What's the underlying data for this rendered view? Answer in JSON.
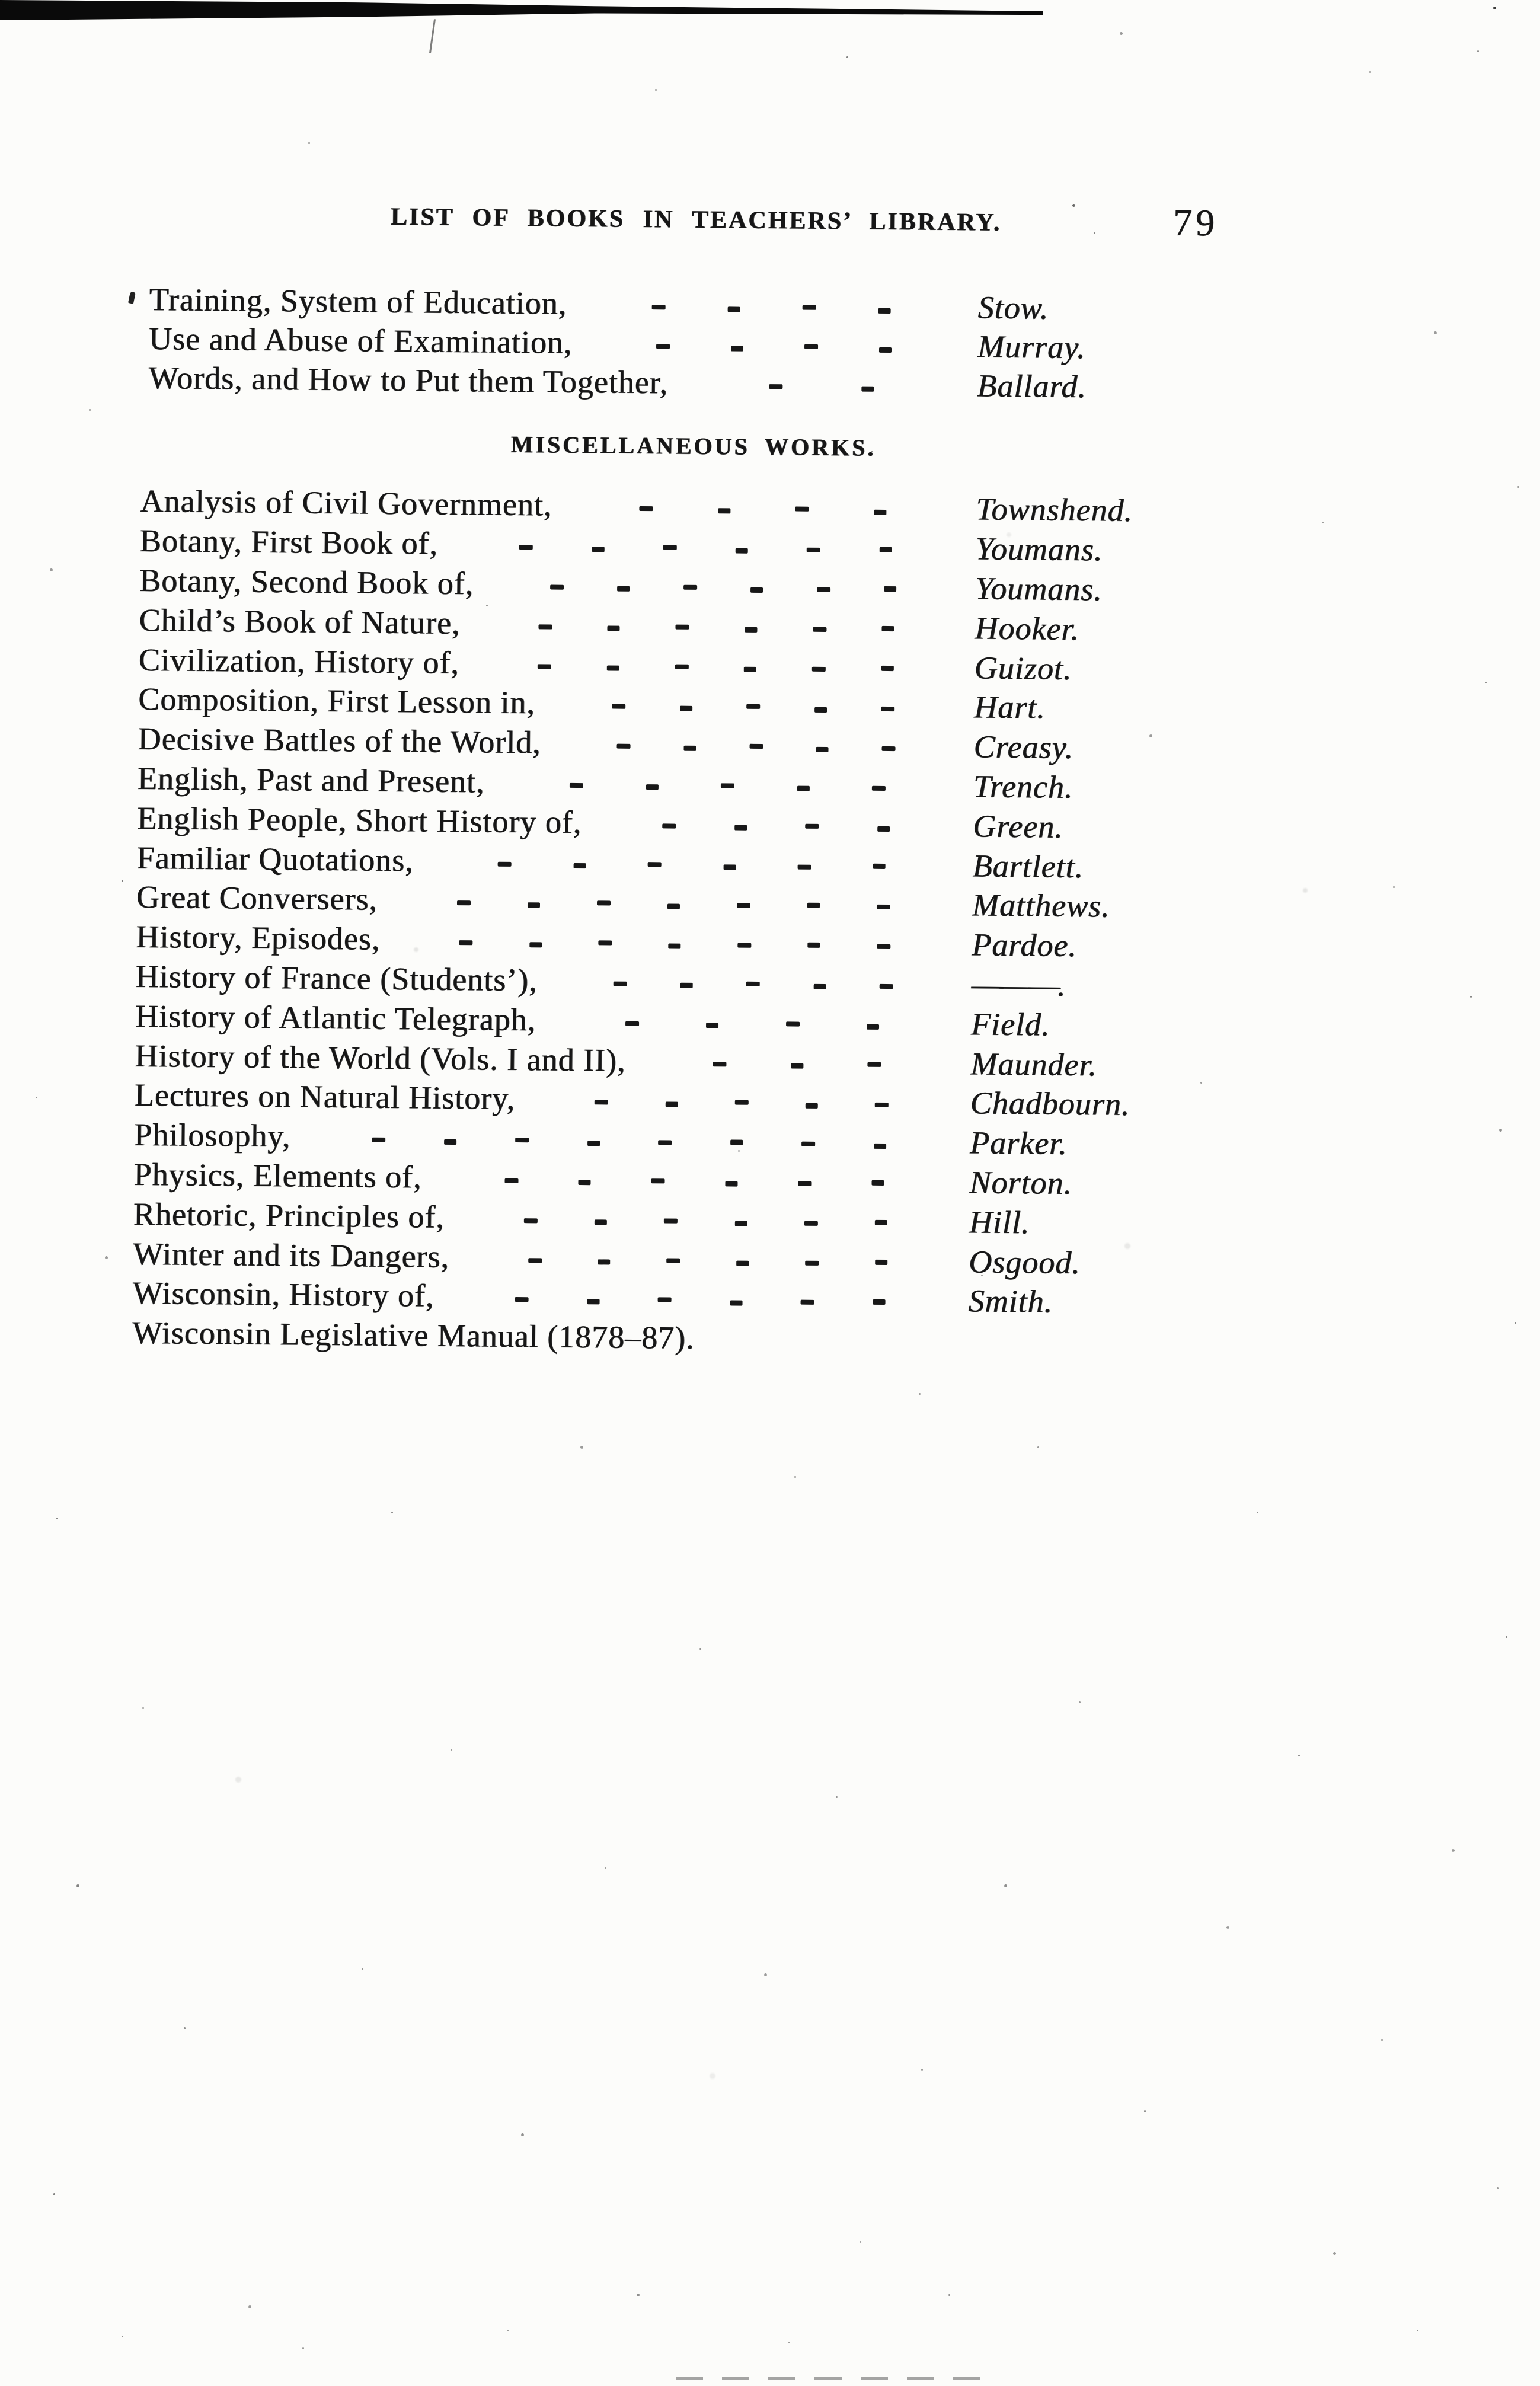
{
  "header": {
    "title": "LIST OF BOOKS IN TEACHERS’ LIBRARY.",
    "page_number": "79"
  },
  "sections": [
    {
      "rows": [
        {
          "title": "Training, System of Education,",
          "dashes": 4,
          "author": "Stow."
        },
        {
          "title": "Use and Abuse of Examination,",
          "dashes": 4,
          "author": "Murray."
        },
        {
          "title": "Words, and How to Put them Together,",
          "dashes": 2,
          "author": "Ballard."
        }
      ]
    },
    {
      "heading": "MISCELLANEOUS WORKS.",
      "rows": [
        {
          "title": "Analysis of Civil Government,",
          "dashes": 4,
          "author": "Townshend."
        },
        {
          "title": "Botany, First Book of,",
          "dashes": 6,
          "author": "Youmans."
        },
        {
          "title": "Botany, Second Book of,",
          "dashes": 6,
          "author": "Youmans."
        },
        {
          "title": "Child’s Book of Nature,",
          "dashes": 6,
          "author": "Hooker."
        },
        {
          "title": "Civilization, History of,",
          "dashes": 6,
          "author": "Guizot."
        },
        {
          "title": "Composition, First Lesson in,",
          "dashes": 5,
          "author": "Hart."
        },
        {
          "title": "Decisive Battles of the World,",
          "dashes": 5,
          "author": "Creasy."
        },
        {
          "title": "English, Past and Present,",
          "dashes": 5,
          "author": "Trench."
        },
        {
          "title": "English People, Short History of,",
          "dashes": 4,
          "author": "Green."
        },
        {
          "title": "Familiar Quotations,",
          "dashes": 6,
          "author": "Bartlett."
        },
        {
          "title": "Great Conversers,",
          "dashes": 7,
          "author": "Matthews."
        },
        {
          "title": "History, Episodes,",
          "dashes": 7,
          "author": "Pardoe."
        },
        {
          "title": "History of France (Students’),",
          "dashes": 5,
          "author": "———."
        },
        {
          "title": "History of Atlantic Telegraph,",
          "dashes": 4,
          "author": "Field."
        },
        {
          "title": "History of the World (Vols. I and II),",
          "dashes": 3,
          "author": "Maunder."
        },
        {
          "title": "Lectures on Natural History,",
          "dashes": 5,
          "author": "Chadbourn."
        },
        {
          "title": "Philosophy,",
          "dashes": 8,
          "author": "Parker."
        },
        {
          "title": "Physics, Elements of,",
          "dashes": 6,
          "author": "Norton."
        },
        {
          "title": "Rhetoric, Principles of,",
          "dashes": 6,
          "author": "Hill."
        },
        {
          "title": "Winter and its Dangers,",
          "dashes": 6,
          "author": "Osgood."
        },
        {
          "title": "Wisconsin, History of,",
          "dashes": 6,
          "author": "Smith."
        },
        {
          "title": "Wisconsin Legislative Manual (1878–87).",
          "dashes": 0,
          "author": ""
        }
      ]
    }
  ]
}
